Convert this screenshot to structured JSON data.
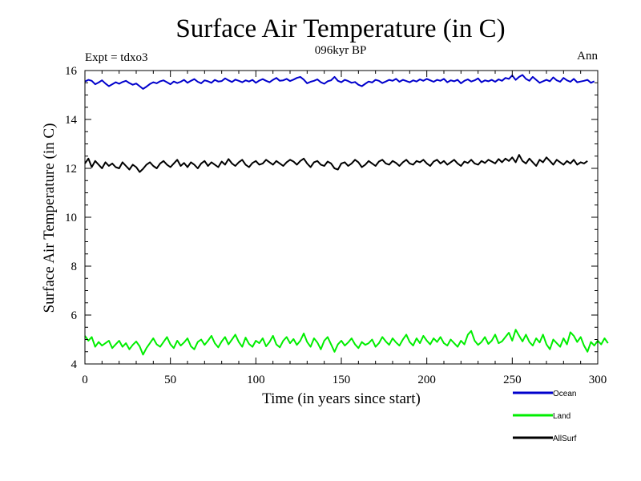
{
  "chart_data": {
    "type": "line",
    "title": "Surface Air Temperature (in C)",
    "subtitle": "096kyr BP",
    "expt_label": "Expt = tdxo3",
    "season_label": "Ann",
    "xlabel": "Time (in years since start)",
    "ylabel": "Surface Air Temperature (in C)",
    "xlim": [
      0,
      300
    ],
    "ylim": [
      4,
      16
    ],
    "x_ticks": [
      0,
      50,
      100,
      150,
      200,
      250,
      300
    ],
    "y_ticks": [
      4,
      6,
      8,
      10,
      12,
      14,
      16
    ],
    "x_minor_step": 10,
    "y_minor_step": 0.5,
    "x_step": 2,
    "series": [
      {
        "name": "Ocean",
        "color": "#0000cc",
        "values": [
          15.55,
          15.62,
          15.58,
          15.44,
          15.51,
          15.6,
          15.47,
          15.36,
          15.44,
          15.52,
          15.46,
          15.53,
          15.58,
          15.49,
          15.42,
          15.47,
          15.36,
          15.25,
          15.34,
          15.45,
          15.52,
          15.48,
          15.56,
          15.6,
          15.52,
          15.44,
          15.55,
          15.49,
          15.54,
          15.62,
          15.5,
          15.58,
          15.65,
          15.54,
          15.48,
          15.6,
          15.56,
          15.5,
          15.62,
          15.55,
          15.57,
          15.68,
          15.6,
          15.53,
          15.63,
          15.58,
          15.52,
          15.6,
          15.55,
          15.62,
          15.5,
          15.59,
          15.65,
          15.58,
          15.52,
          15.62,
          15.7,
          15.58,
          15.6,
          15.66,
          15.57,
          15.63,
          15.7,
          15.74,
          15.63,
          15.48,
          15.54,
          15.58,
          15.64,
          15.52,
          15.46,
          15.56,
          15.6,
          15.74,
          15.58,
          15.52,
          15.62,
          15.57,
          15.5,
          15.53,
          15.42,
          15.36,
          15.46,
          15.55,
          15.51,
          15.62,
          15.58,
          15.49,
          15.55,
          15.62,
          15.58,
          15.66,
          15.54,
          15.62,
          15.57,
          15.52,
          15.6,
          15.55,
          15.64,
          15.58,
          15.66,
          15.6,
          15.54,
          15.62,
          15.58,
          15.66,
          15.52,
          15.6,
          15.56,
          15.62,
          15.48,
          15.58,
          15.64,
          15.55,
          15.6,
          15.68,
          15.52,
          15.6,
          15.56,
          15.62,
          15.54,
          15.64,
          15.58,
          15.7,
          15.66,
          15.8,
          15.62,
          15.74,
          15.82,
          15.66,
          15.58,
          15.74,
          15.62,
          15.5,
          15.56,
          15.62,
          15.56,
          15.72,
          15.6,
          15.54,
          15.7,
          15.6,
          15.54,
          15.66,
          15.52,
          15.55,
          15.58,
          15.62,
          15.5,
          15.56
        ]
      },
      {
        "name": "Land",
        "color": "#00ee00",
        "values": [
          5.15,
          4.95,
          5.1,
          4.7,
          4.9,
          4.75,
          4.85,
          4.95,
          4.65,
          4.8,
          4.95,
          4.7,
          4.85,
          4.6,
          4.78,
          4.92,
          4.72,
          4.38,
          4.65,
          4.85,
          5.05,
          4.8,
          4.7,
          4.9,
          5.1,
          4.8,
          4.65,
          4.95,
          4.75,
          4.88,
          5.05,
          4.72,
          4.6,
          4.9,
          5.0,
          4.78,
          4.95,
          5.15,
          4.85,
          4.68,
          4.92,
          5.1,
          4.8,
          5.0,
          5.2,
          4.9,
          4.7,
          5.08,
          4.82,
          4.7,
          4.95,
          4.85,
          5.05,
          4.72,
          4.9,
          5.15,
          4.8,
          4.68,
          4.95,
          5.1,
          4.85,
          5.02,
          4.78,
          4.95,
          5.25,
          4.9,
          4.7,
          5.05,
          4.88,
          4.6,
          4.95,
          5.1,
          4.8,
          4.5,
          4.8,
          4.95,
          4.75,
          4.88,
          5.05,
          4.8,
          4.65,
          4.9,
          4.78,
          4.85,
          5.0,
          4.7,
          4.85,
          5.1,
          4.92,
          4.78,
          5.05,
          4.88,
          4.75,
          5.0,
          5.2,
          4.9,
          4.75,
          5.05,
          4.85,
          5.15,
          4.95,
          4.8,
          5.05,
          4.9,
          5.1,
          4.85,
          4.75,
          5.0,
          4.85,
          4.7,
          4.95,
          4.8,
          5.2,
          5.35,
          4.95,
          4.78,
          4.9,
          5.1,
          4.82,
          4.95,
          5.2,
          4.85,
          4.92,
          5.1,
          5.28,
          4.95,
          5.4,
          5.15,
          4.92,
          5.2,
          4.9,
          4.75,
          5.05,
          4.88,
          5.2,
          4.8,
          4.6,
          5.0,
          4.85,
          4.7,
          5.05,
          4.8,
          5.3,
          5.15,
          4.9,
          5.1,
          4.75,
          4.5,
          4.9,
          4.75,
          4.95,
          4.8,
          5.05,
          4.85
        ]
      },
      {
        "name": "AllSurf",
        "color": "#000000",
        "values": [
          12.2,
          12.4,
          12.05,
          12.3,
          12.15,
          12.0,
          12.25,
          12.1,
          12.2,
          12.05,
          12.0,
          12.25,
          12.1,
          11.95,
          12.15,
          12.05,
          11.85,
          11.98,
          12.15,
          12.25,
          12.1,
          12.0,
          12.2,
          12.3,
          12.15,
          12.05,
          12.2,
          12.35,
          12.1,
          12.22,
          12.05,
          12.25,
          12.15,
          12.0,
          12.2,
          12.3,
          12.1,
          12.25,
          12.15,
          12.05,
          12.28,
          12.15,
          12.38,
          12.2,
          12.1,
          12.25,
          12.35,
          12.15,
          12.05,
          12.22,
          12.3,
          12.15,
          12.2,
          12.35,
          12.25,
          12.15,
          12.3,
          12.2,
          12.1,
          12.25,
          12.35,
          12.28,
          12.15,
          12.3,
          12.4,
          12.2,
          12.05,
          12.25,
          12.3,
          12.15,
          12.1,
          12.28,
          12.2,
          12.0,
          11.95,
          12.2,
          12.25,
          12.1,
          12.2,
          12.35,
          12.25,
          12.05,
          12.15,
          12.3,
          12.2,
          12.1,
          12.28,
          12.35,
          12.2,
          12.15,
          12.3,
          12.22,
          12.1,
          12.25,
          12.35,
          12.2,
          12.15,
          12.3,
          12.25,
          12.35,
          12.2,
          12.1,
          12.28,
          12.35,
          12.2,
          12.3,
          12.15,
          12.25,
          12.35,
          12.2,
          12.1,
          12.28,
          12.22,
          12.35,
          12.2,
          12.15,
          12.3,
          12.22,
          12.35,
          12.28,
          12.2,
          12.38,
          12.25,
          12.4,
          12.3,
          12.45,
          12.25,
          12.55,
          12.3,
          12.2,
          12.4,
          12.25,
          12.1,
          12.35,
          12.25,
          12.45,
          12.3,
          12.15,
          12.35,
          12.25,
          12.15,
          12.3,
          12.2,
          12.35,
          12.15,
          12.25,
          12.2,
          12.3
        ]
      }
    ]
  }
}
